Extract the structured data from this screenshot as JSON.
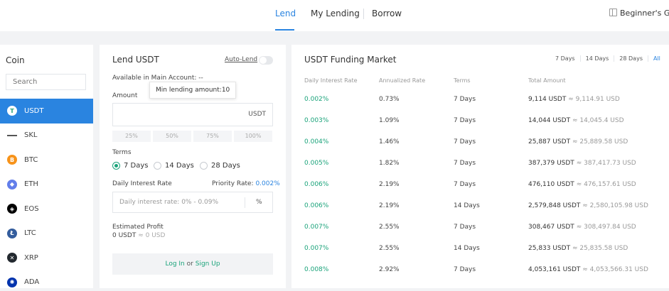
{
  "nav": {
    "tabs": [
      {
        "label": "Lend",
        "active": true
      },
      {
        "label": "My Lending",
        "active": false
      },
      {
        "label": "Borrow",
        "active": false
      }
    ],
    "guide_label": "Beginner's Gu",
    "accent": "#2a84e0",
    "green": "#1aa37a"
  },
  "coins": {
    "title": "Coin",
    "search_placeholder": "Search",
    "items": [
      {
        "symbol": "USDT",
        "icon": "tether-icon",
        "color": "#26a17b",
        "active": true
      },
      {
        "symbol": "SKL",
        "icon": "skale-icon",
        "color": "#555555",
        "active": false
      },
      {
        "symbol": "BTC",
        "icon": "bitcoin-icon",
        "color": "#f7931a",
        "active": false
      },
      {
        "symbol": "ETH",
        "icon": "ethereum-icon",
        "color": "#627eea",
        "active": false
      },
      {
        "symbol": "EOS",
        "icon": "eos-icon",
        "color": "#000000",
        "active": false
      },
      {
        "symbol": "LTC",
        "icon": "litecoin-icon",
        "color": "#345d9d",
        "active": false
      },
      {
        "symbol": "XRP",
        "icon": "xrp-icon",
        "color": "#23292f",
        "active": false
      },
      {
        "symbol": "ADA",
        "icon": "cardano-icon",
        "color": "#0033ad",
        "active": false
      }
    ]
  },
  "lend": {
    "title": "Lend USDT",
    "auto_lend_label": "Auto-Lend",
    "auto_lend_on": false,
    "available_label": "Available in Main Account:",
    "available_value": "--",
    "tooltip": "Min lending amount:10",
    "amount_label": "Amount",
    "amount_value": "",
    "currency": "USDT",
    "percent_buttons": [
      "25%",
      "50%",
      "75%",
      "100%"
    ],
    "terms_label": "Terms",
    "terms": [
      {
        "label": "7 Days",
        "selected": true
      },
      {
        "label": "14 Days",
        "selected": false
      },
      {
        "label": "28 Days",
        "selected": false
      }
    ],
    "daily_rate_label": "Daily Interest Rate",
    "priority_label": "Priority Rate:",
    "priority_value": "0.002%",
    "rate_placeholder": "Daily interest rate: 0% - 0.09%",
    "rate_unit": "%",
    "profit_label": "Estimated Profit",
    "profit_value": "0 USDT",
    "profit_approx": "≈ 0 USD",
    "login_text": "Log In",
    "or_text": "or",
    "signup_text": "Sign Up"
  },
  "market": {
    "title": "USDT Funding Market",
    "filters": [
      {
        "label": "7 Days",
        "active": false
      },
      {
        "label": "14 Days",
        "active": false
      },
      {
        "label": "28 Days",
        "active": false
      },
      {
        "label": "All",
        "active": true
      }
    ],
    "headers": [
      "Daily Interest Rate",
      "Annualized Rate",
      "Terms",
      "Total Amount"
    ],
    "rows": [
      {
        "daily": "0.002%",
        "annual": "0.73%",
        "term": "7 Days",
        "amount": "9,114 USDT",
        "approx": "≈ 9,114.91 USD"
      },
      {
        "daily": "0.003%",
        "annual": "1.09%",
        "term": "7 Days",
        "amount": "14,044 USDT",
        "approx": "≈ 14,045.4 USD"
      },
      {
        "daily": "0.004%",
        "annual": "1.46%",
        "term": "7 Days",
        "amount": "25,887 USDT",
        "approx": "≈ 25,889.58 USD"
      },
      {
        "daily": "0.005%",
        "annual": "1.82%",
        "term": "7 Days",
        "amount": "387,379 USDT",
        "approx": "≈ 387,417.73 USD"
      },
      {
        "daily": "0.006%",
        "annual": "2.19%",
        "term": "7 Days",
        "amount": "476,110 USDT",
        "approx": "≈ 476,157.61 USD"
      },
      {
        "daily": "0.006%",
        "annual": "2.19%",
        "term": "14 Days",
        "amount": "2,579,848 USDT",
        "approx": "≈ 2,580,105.98 USD"
      },
      {
        "daily": "0.007%",
        "annual": "2.55%",
        "term": "7 Days",
        "amount": "308,467 USDT",
        "approx": "≈ 308,497.84 USD"
      },
      {
        "daily": "0.007%",
        "annual": "2.55%",
        "term": "14 Days",
        "amount": "25,833 USDT",
        "approx": "≈ 25,835.58 USD"
      },
      {
        "daily": "0.008%",
        "annual": "2.92%",
        "term": "7 Days",
        "amount": "4,053,161 USDT",
        "approx": "≈ 4,053,566.31 USD"
      }
    ]
  }
}
